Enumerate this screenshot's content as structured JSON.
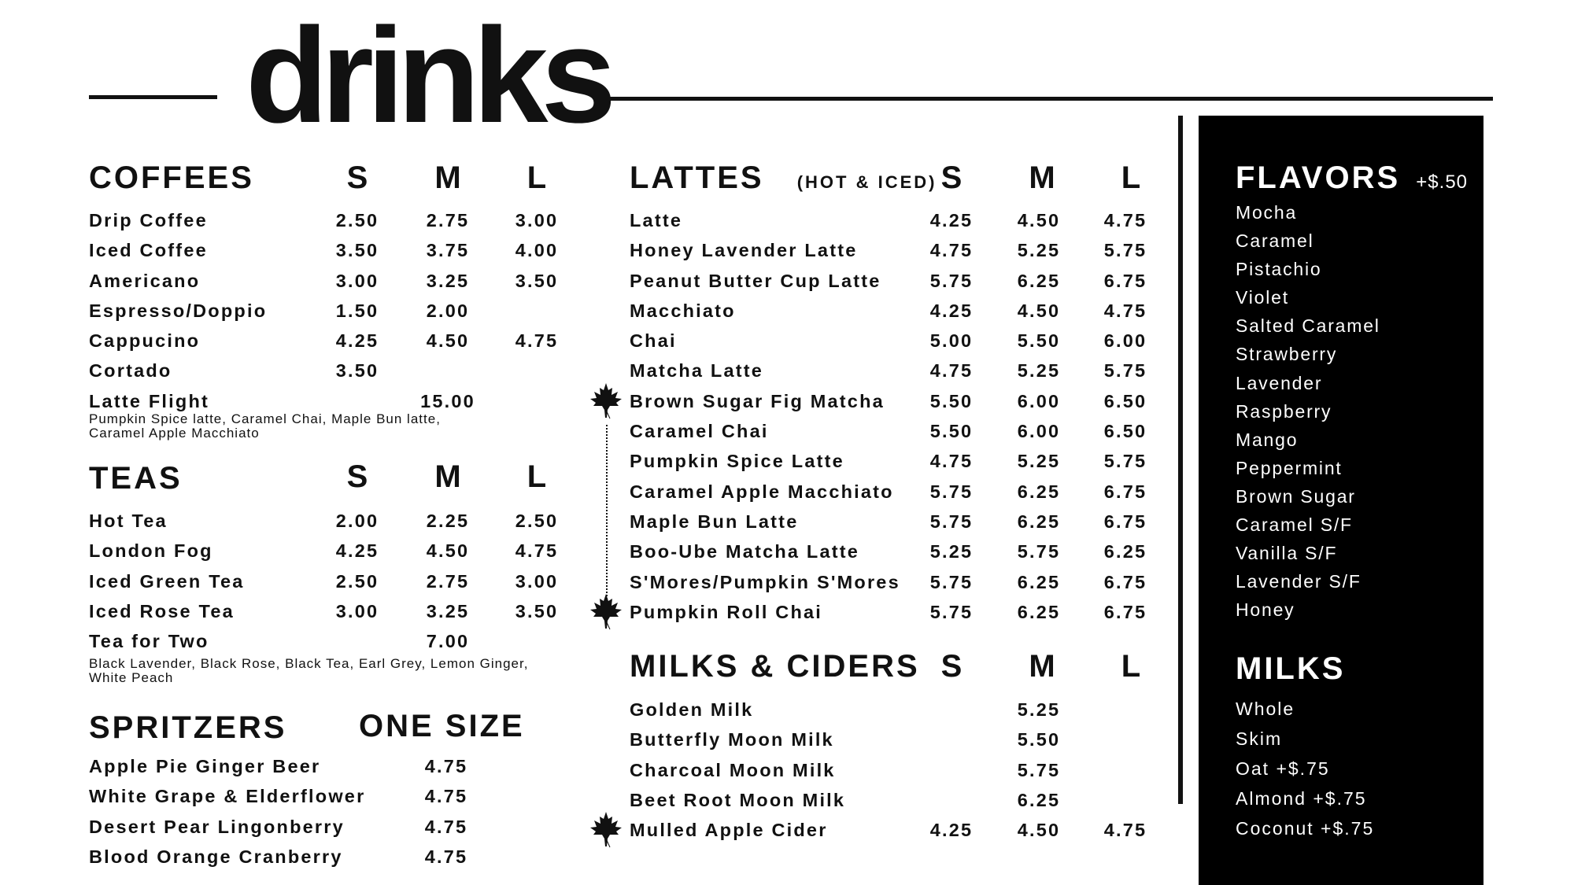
{
  "title": "drinks",
  "coffees": {
    "heading": "COFFEES",
    "sizes": [
      "S",
      "M",
      "L"
    ],
    "items": [
      {
        "name": "Drip Coffee",
        "prices": [
          "2.50",
          "2.75",
          "3.00"
        ]
      },
      {
        "name": "Iced Coffee",
        "prices": [
          "3.50",
          "3.75",
          "4.00"
        ]
      },
      {
        "name": "Americano",
        "prices": [
          "3.00",
          "3.25",
          "3.50"
        ]
      },
      {
        "name": "Espresso/Doppio",
        "prices": [
          "1.50",
          "2.00",
          ""
        ]
      },
      {
        "name": "Cappucino",
        "prices": [
          "4.25",
          "4.50",
          "4.75"
        ]
      },
      {
        "name": "Cortado",
        "prices": [
          "3.50",
          "",
          ""
        ]
      },
      {
        "name": "Latte Flight",
        "prices": [
          "",
          "15.00",
          ""
        ]
      }
    ],
    "note": [
      "Pumpkin Spice latte, Caramel Chai, Maple Bun latte,",
      "Caramel Apple Macchiato"
    ]
  },
  "teas": {
    "heading": "TEAS",
    "sizes": [
      "S",
      "M",
      "L"
    ],
    "items": [
      {
        "name": "Hot Tea",
        "prices": [
          "2.00",
          "2.25",
          "2.50"
        ]
      },
      {
        "name": "London Fog",
        "prices": [
          "4.25",
          "4.50",
          "4.75"
        ]
      },
      {
        "name": "Iced Green Tea",
        "prices": [
          "2.50",
          "2.75",
          "3.00"
        ]
      },
      {
        "name": "Iced Rose Tea",
        "prices": [
          "3.00",
          "3.25",
          "3.50"
        ]
      },
      {
        "name": "Tea for Two",
        "prices": [
          "",
          "7.00",
          ""
        ]
      }
    ],
    "note": [
      "Black Lavender, Black Rose, Black Tea, Earl Grey, Lemon Ginger,",
      "White Peach"
    ]
  },
  "spritzers": {
    "heading": "SPRITZERS",
    "size_label": "ONE SIZE",
    "items": [
      {
        "name": "Apple Pie Ginger Beer",
        "prices": [
          "",
          "4.75",
          ""
        ]
      },
      {
        "name": "White Grape & Elderflower",
        "prices": [
          "",
          "4.75",
          ""
        ]
      },
      {
        "name": "Desert Pear Lingonberry",
        "prices": [
          "",
          "4.75",
          ""
        ]
      },
      {
        "name": "Blood Orange Cranberry",
        "prices": [
          "",
          "4.75",
          ""
        ]
      }
    ]
  },
  "lattes": {
    "heading": "LATTES",
    "subheading": "(HOT & ICED)",
    "sizes": [
      "S",
      "M",
      "L"
    ],
    "items": [
      {
        "name": "Latte",
        "prices": [
          "4.25",
          "4.50",
          "4.75"
        ]
      },
      {
        "name": "Honey Lavender Latte",
        "prices": [
          "4.75",
          "5.25",
          "5.75"
        ]
      },
      {
        "name": "Peanut Butter Cup Latte",
        "prices": [
          "5.75",
          "6.25",
          "6.75"
        ]
      },
      {
        "name": "Macchiato",
        "prices": [
          "4.25",
          "4.50",
          "4.75"
        ]
      },
      {
        "name": "Chai",
        "prices": [
          "5.00",
          "5.50",
          "6.00"
        ]
      },
      {
        "name": "Matcha Latte",
        "prices": [
          "4.75",
          "5.25",
          "5.75"
        ]
      },
      {
        "name": "Brown Sugar Fig Matcha",
        "prices": [
          "5.50",
          "6.00",
          "6.50"
        ],
        "seasonal": true
      },
      {
        "name": "Caramel Chai",
        "prices": [
          "5.50",
          "6.00",
          "6.50"
        ]
      },
      {
        "name": "Pumpkin Spice Latte",
        "prices": [
          "4.75",
          "5.25",
          "5.75"
        ]
      },
      {
        "name": "Caramel Apple Macchiato",
        "prices": [
          "5.75",
          "6.25",
          "6.75"
        ]
      },
      {
        "name": "Maple Bun Latte",
        "prices": [
          "5.75",
          "6.25",
          "6.75"
        ]
      },
      {
        "name": "Boo-Ube Matcha Latte",
        "prices": [
          "5.25",
          "5.75",
          "6.25"
        ]
      },
      {
        "name": "S'Mores/Pumpkin S'Mores",
        "prices": [
          "5.75",
          "6.25",
          "6.75"
        ]
      },
      {
        "name": "Pumpkin Roll Chai",
        "prices": [
          "5.75",
          "6.25",
          "6.75"
        ],
        "seasonal": true
      }
    ]
  },
  "milks_ciders": {
    "heading": "MILKS & CIDERS",
    "sizes": [
      "S",
      "M",
      "L"
    ],
    "items": [
      {
        "name": "Golden Milk",
        "prices": [
          "",
          "5.25",
          ""
        ]
      },
      {
        "name": "Butterfly Moon Milk",
        "prices": [
          "",
          "5.50",
          ""
        ]
      },
      {
        "name": "Charcoal Moon Milk",
        "prices": [
          "",
          "5.75",
          ""
        ]
      },
      {
        "name": "Beet Root Moon Milk",
        "prices": [
          "",
          "6.25",
          ""
        ]
      },
      {
        "name": "Mulled Apple Cider",
        "prices": [
          "4.25",
          "4.50",
          "4.75"
        ],
        "seasonal": true
      }
    ]
  },
  "flavors": {
    "heading": "FLAVORS",
    "price": "+$.50",
    "items": [
      "Mocha",
      "Caramel",
      "Pistachio",
      "Violet",
      "Salted Caramel",
      "Strawberry",
      "Lavender",
      "Raspberry",
      "Mango",
      "Peppermint",
      "Brown Sugar",
      "Caramel S/F",
      "Vanilla S/F",
      "Lavender S/F",
      "Honey"
    ]
  },
  "milks": {
    "heading": "MILKS",
    "items": [
      "Whole",
      "Skim",
      "Oat +$.75",
      "Almond +$.75",
      "Coconut +$.75"
    ]
  },
  "icons": {
    "seasonal": "maple-leaf-icon"
  },
  "colors": {
    "ink": "#111111",
    "panel": "#000000",
    "panel_text": "#ffffff"
  }
}
